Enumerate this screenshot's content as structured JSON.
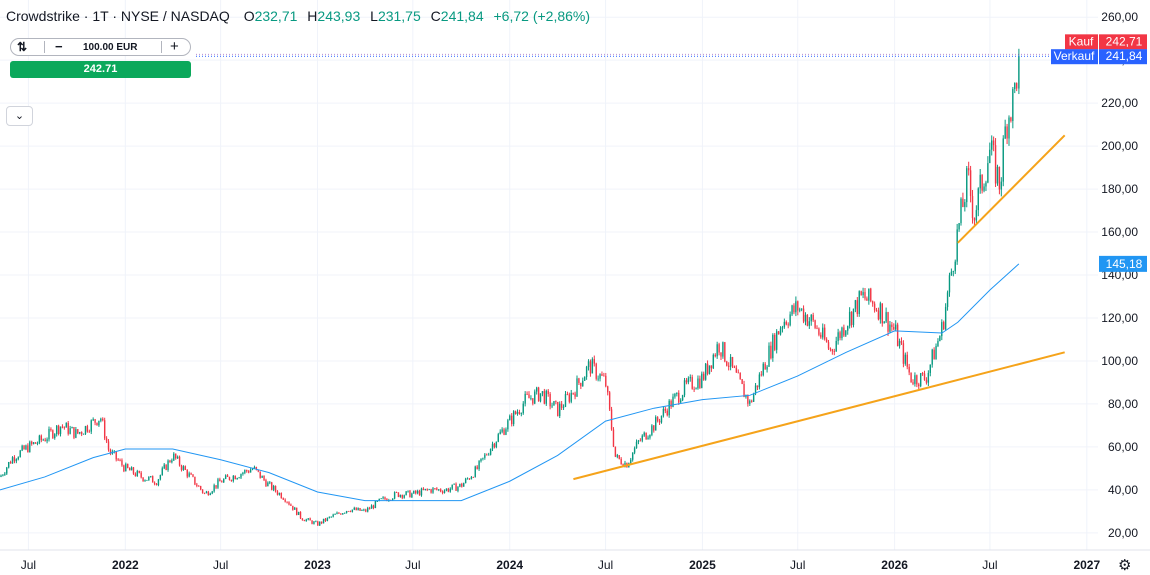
{
  "header": {
    "title": "Crowdstrike · 1T · NYSE / NASDAQ",
    "ohlc": [
      {
        "key": "O",
        "value": "232,71"
      },
      {
        "key": "H",
        "value": "243,93"
      },
      {
        "key": "L",
        "value": "231,75"
      },
      {
        "key": "C",
        "value": "241,84"
      }
    ],
    "change": "+6,72 (+2,86%)"
  },
  "trade_panel": {
    "quantity": "100.00 EUR",
    "minus_label": "−",
    "plus_label": "+",
    "buy_price": "242.71"
  },
  "collapse_icon": "chevron-down-icon",
  "settings_icon": "gear-icon",
  "colors": {
    "up": "#089981",
    "down": "#f23645",
    "ma": "#2196f3",
    "trendline": "#f5a31a",
    "buy_button": "#0ba85b",
    "kauf": "#f23645",
    "verkauf": "#2962ff",
    "ma_label": "#2196f3"
  },
  "chart_data": {
    "type": "candlestick",
    "ylim": [
      12,
      268
    ],
    "y_ticks": [
      "20,00",
      "40,00",
      "60,00",
      "80,00",
      "100,00",
      "120,00",
      "140,00",
      "160,00",
      "180,00",
      "200,00",
      "220,00",
      "240,00",
      "260,00"
    ],
    "x_range": [
      "2021-05-08",
      "2027-05-01"
    ],
    "x_ticks": [
      {
        "label": "Jul",
        "date": "2021-07-01",
        "bold": false
      },
      {
        "label": "2022",
        "date": "2022-01-01",
        "bold": true
      },
      {
        "label": "Jul",
        "date": "2022-07-01",
        "bold": false
      },
      {
        "label": "2023",
        "date": "2023-01-01",
        "bold": true
      },
      {
        "label": "Jul",
        "date": "2023-07-01",
        "bold": false
      },
      {
        "label": "2024",
        "date": "2024-01-01",
        "bold": true
      },
      {
        "label": "Jul",
        "date": "2024-07-01",
        "bold": false
      },
      {
        "label": "2025",
        "date": "2025-01-01",
        "bold": true
      },
      {
        "label": "Jul",
        "date": "2025-07-01",
        "bold": false
      },
      {
        "label": "2026",
        "date": "2026-01-01",
        "bold": true
      },
      {
        "label": "Jul",
        "date": "2026-07-01",
        "bold": false
      },
      {
        "label": "2027",
        "date": "2027-01-01",
        "bold": true
      }
    ],
    "price_path": [
      [
        "2021-05-08",
        46
      ],
      [
        "2021-06-01",
        55
      ],
      [
        "2021-07-01",
        60
      ],
      [
        "2021-08-01",
        64
      ],
      [
        "2021-09-01",
        70
      ],
      [
        "2021-10-01",
        66
      ],
      [
        "2021-11-15",
        74
      ],
      [
        "2021-12-01",
        58
      ],
      [
        "2022-01-01",
        50
      ],
      [
        "2022-02-01",
        46
      ],
      [
        "2022-03-01",
        44
      ],
      [
        "2022-04-01",
        56
      ],
      [
        "2022-05-01",
        47
      ],
      [
        "2022-06-01",
        38
      ],
      [
        "2022-07-01",
        44
      ],
      [
        "2022-08-01",
        47
      ],
      [
        "2022-09-01",
        50
      ],
      [
        "2022-10-01",
        42
      ],
      [
        "2022-11-01",
        36
      ],
      [
        "2022-12-01",
        27
      ],
      [
        "2023-01-01",
        24
      ],
      [
        "2023-02-01",
        28
      ],
      [
        "2023-03-01",
        31
      ],
      [
        "2023-04-01",
        30
      ],
      [
        "2023-05-01",
        35
      ],
      [
        "2023-06-01",
        38
      ],
      [
        "2023-07-01",
        38
      ],
      [
        "2023-08-01",
        40
      ],
      [
        "2023-09-01",
        40
      ],
      [
        "2023-10-01",
        42
      ],
      [
        "2023-11-01",
        50
      ],
      [
        "2023-12-01",
        62
      ],
      [
        "2024-01-01",
        72
      ],
      [
        "2024-02-01",
        82
      ],
      [
        "2024-03-01",
        85
      ],
      [
        "2024-04-01",
        77
      ],
      [
        "2024-05-01",
        86
      ],
      [
        "2024-06-01",
        98
      ],
      [
        "2024-07-01",
        90
      ],
      [
        "2024-07-20",
        55
      ],
      [
        "2024-08-10",
        52
      ],
      [
        "2024-09-01",
        62
      ],
      [
        "2024-10-01",
        70
      ],
      [
        "2024-11-01",
        80
      ],
      [
        "2024-12-01",
        88
      ],
      [
        "2025-01-01",
        92
      ],
      [
        "2025-02-01",
        108
      ],
      [
        "2025-03-01",
        95
      ],
      [
        "2025-04-01",
        80
      ],
      [
        "2025-05-01",
        100
      ],
      [
        "2025-06-01",
        118
      ],
      [
        "2025-07-01",
        125
      ],
      [
        "2025-08-01",
        117
      ],
      [
        "2025-09-01",
        105
      ],
      [
        "2025-10-01",
        118
      ],
      [
        "2025-11-01",
        130
      ],
      [
        "2025-12-01",
        125
      ],
      [
        "2026-01-01",
        114
      ],
      [
        "2026-02-01",
        92
      ],
      [
        "2026-03-01",
        92
      ],
      [
        "2026-04-01",
        115
      ],
      [
        "2026-05-01",
        160
      ],
      [
        "2026-05-20",
        185
      ],
      [
        "2026-06-01",
        168
      ],
      [
        "2026-07-01",
        198
      ],
      [
        "2026-07-20",
        182
      ],
      [
        "2026-08-01",
        212
      ],
      [
        "2026-08-15",
        222
      ],
      [
        "2026-08-25",
        241.84
      ]
    ],
    "moving_average": {
      "last_value": "145,18",
      "points": [
        [
          "2021-05-08",
          40
        ],
        [
          "2021-08-01",
          46
        ],
        [
          "2021-11-01",
          55
        ],
        [
          "2022-01-01",
          59
        ],
        [
          "2022-04-01",
          59
        ],
        [
          "2022-07-01",
          54
        ],
        [
          "2022-10-01",
          48
        ],
        [
          "2023-01-01",
          39
        ],
        [
          "2023-04-01",
          35
        ],
        [
          "2023-07-01",
          35
        ],
        [
          "2023-10-01",
          35
        ],
        [
          "2024-01-01",
          44
        ],
        [
          "2024-04-01",
          56
        ],
        [
          "2024-07-01",
          72
        ],
        [
          "2024-10-01",
          78
        ],
        [
          "2025-01-01",
          82
        ],
        [
          "2025-04-01",
          84
        ],
        [
          "2025-07-01",
          93
        ],
        [
          "2025-10-01",
          104
        ],
        [
          "2026-01-01",
          114
        ],
        [
          "2026-04-01",
          113
        ],
        [
          "2026-05-01",
          118
        ],
        [
          "2026-07-01",
          133
        ],
        [
          "2026-08-25",
          145.18
        ]
      ]
    },
    "trendlines": [
      {
        "from": [
          "2024-05-01",
          45
        ],
        "to": [
          "2026-11-20",
          104
        ]
      },
      {
        "from": [
          "2026-05-01",
          155
        ],
        "to": [
          "2026-11-20",
          205
        ]
      }
    ],
    "price_labels": {
      "kauf": {
        "label": "Kauf",
        "value": "242,71",
        "price": 242.71
      },
      "verkauf": {
        "label": "Verkauf",
        "value": "241,84",
        "price": 241.84
      }
    }
  }
}
